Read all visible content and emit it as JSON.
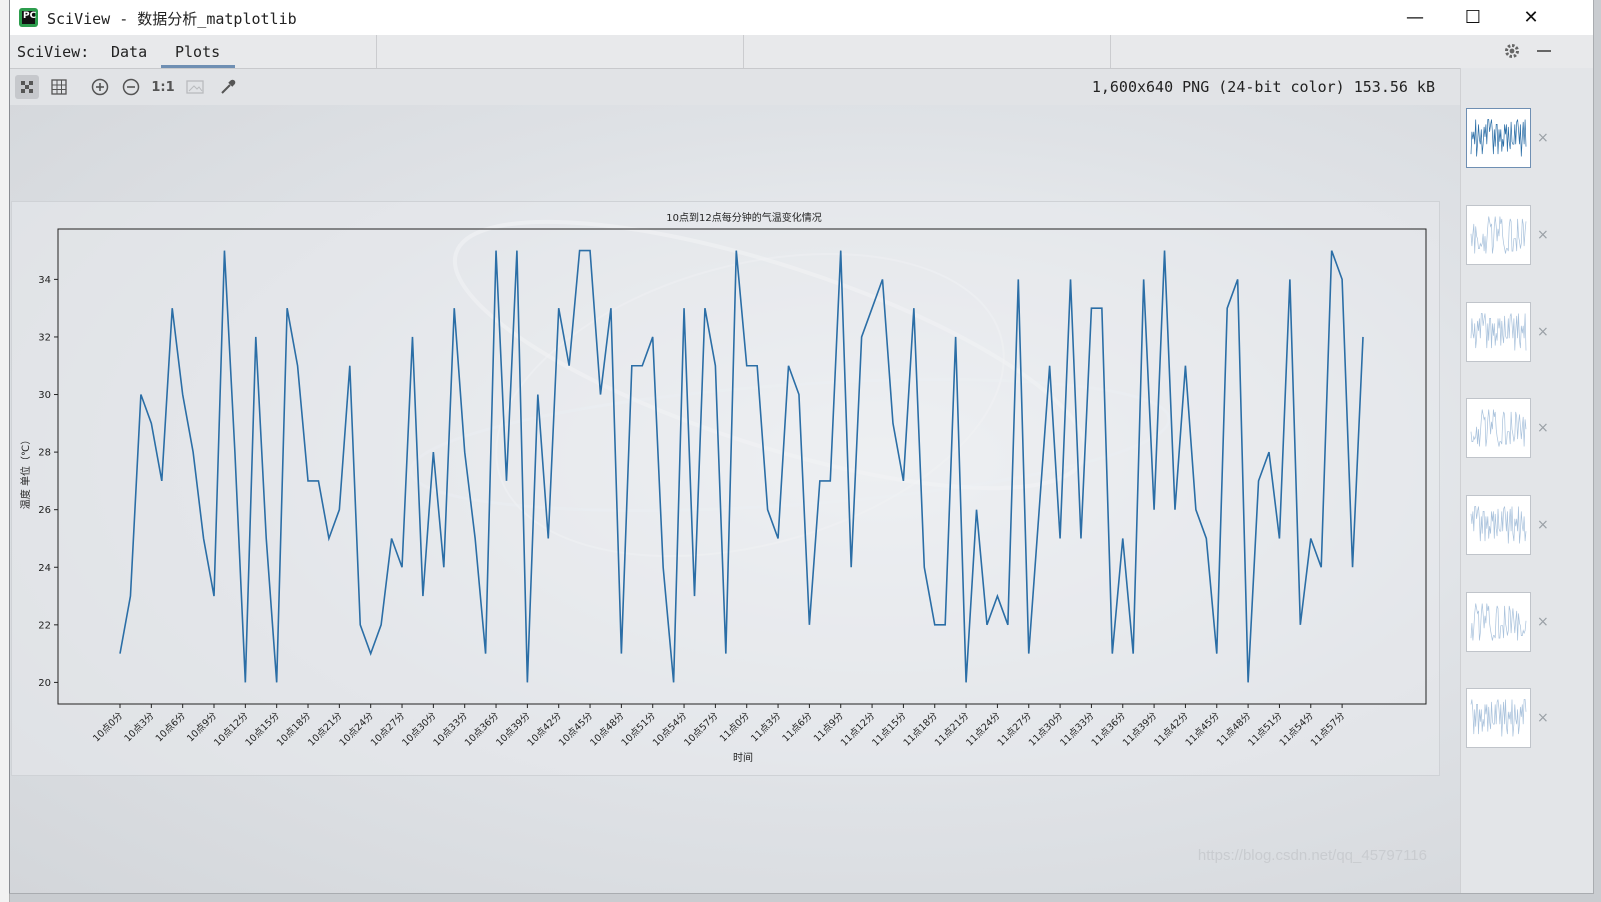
{
  "window": {
    "title": "SciView - 数据分析_matplotlib",
    "app_icon_text": "PC",
    "minimize_glyph": "—",
    "maximize_glyph": "☐",
    "close_glyph": "✕"
  },
  "tabs": {
    "prefix": "SciView:",
    "items": [
      {
        "label": "Data",
        "active": false
      },
      {
        "label": "Plots",
        "active": true
      }
    ]
  },
  "toolbar": {
    "icons": [
      "fit-to-window-icon",
      "grid-icon",
      "zoom-in-icon",
      "zoom-out-icon",
      "actual-size-icon",
      "background-icon",
      "color-picker-icon"
    ],
    "actual_size_label": "1:1",
    "settings_icon": "gear-icon",
    "hide_icon": "minimize-panel-icon"
  },
  "image_info": "1,600x640 PNG (24-bit color) 153.56 kB",
  "thumbnails": {
    "count": 7,
    "close_glyph": "×"
  },
  "watermark": "https://blog.csdn.net/qq_45797116",
  "colors": {
    "line": "#2b6ea6",
    "accent_tab": "#6f8fb3"
  },
  "chart_data": {
    "type": "line",
    "title": "10点到12点每分钟的气温变化情况",
    "xlabel": "时间",
    "ylabel": "温度 单位（℃）",
    "ylim": [
      19.25,
      35.75
    ],
    "yticks": [
      20,
      22,
      24,
      26,
      28,
      30,
      32,
      34
    ],
    "x_tick_labels": [
      "10点0分",
      "10点3分",
      "10点6分",
      "10点9分",
      "10点12分",
      "10点15分",
      "10点18分",
      "10点21分",
      "10点24分",
      "10点27分",
      "10点30分",
      "10点33分",
      "10点36分",
      "10点39分",
      "10点42分",
      "10点45分",
      "10点48分",
      "10点51分",
      "10点54分",
      "10点57分",
      "11点0分",
      "11点3分",
      "11点6分",
      "11点9分",
      "11点12分",
      "11点15分",
      "11点18分",
      "11点21分",
      "11点24分",
      "11点27分",
      "11点30分",
      "11点33分",
      "11点36分",
      "11点39分",
      "11点42分",
      "11点45分",
      "11点48分",
      "11点51分",
      "11点54分",
      "11点57分"
    ],
    "series": [
      {
        "values": [
          21,
          23,
          30,
          29,
          27,
          33,
          30,
          28,
          25,
          23,
          35,
          28,
          20,
          32,
          25,
          20,
          33,
          31,
          27,
          27,
          25,
          26,
          31,
          22,
          21,
          22,
          25,
          24,
          32,
          23,
          28,
          24,
          33,
          28,
          25,
          21,
          35,
          27,
          35,
          20,
          30,
          25,
          33,
          31,
          35,
          35,
          30,
          33,
          21,
          31,
          31,
          32,
          24,
          20,
          33,
          23,
          33,
          31,
          21,
          35,
          31,
          31,
          26,
          25,
          31,
          30,
          22,
          27,
          27,
          35,
          24,
          32,
          33,
          34,
          29,
          27,
          33,
          24,
          22,
          22,
          32,
          20,
          26,
          22,
          23,
          22,
          34,
          21,
          26,
          31,
          25,
          34,
          25,
          33,
          33,
          21,
          25,
          21,
          34,
          26,
          35,
          26,
          31,
          26,
          25,
          21,
          33,
          34,
          20,
          27,
          28,
          25,
          34,
          22,
          25,
          24,
          35,
          34,
          24,
          32
        ]
      }
    ]
  }
}
